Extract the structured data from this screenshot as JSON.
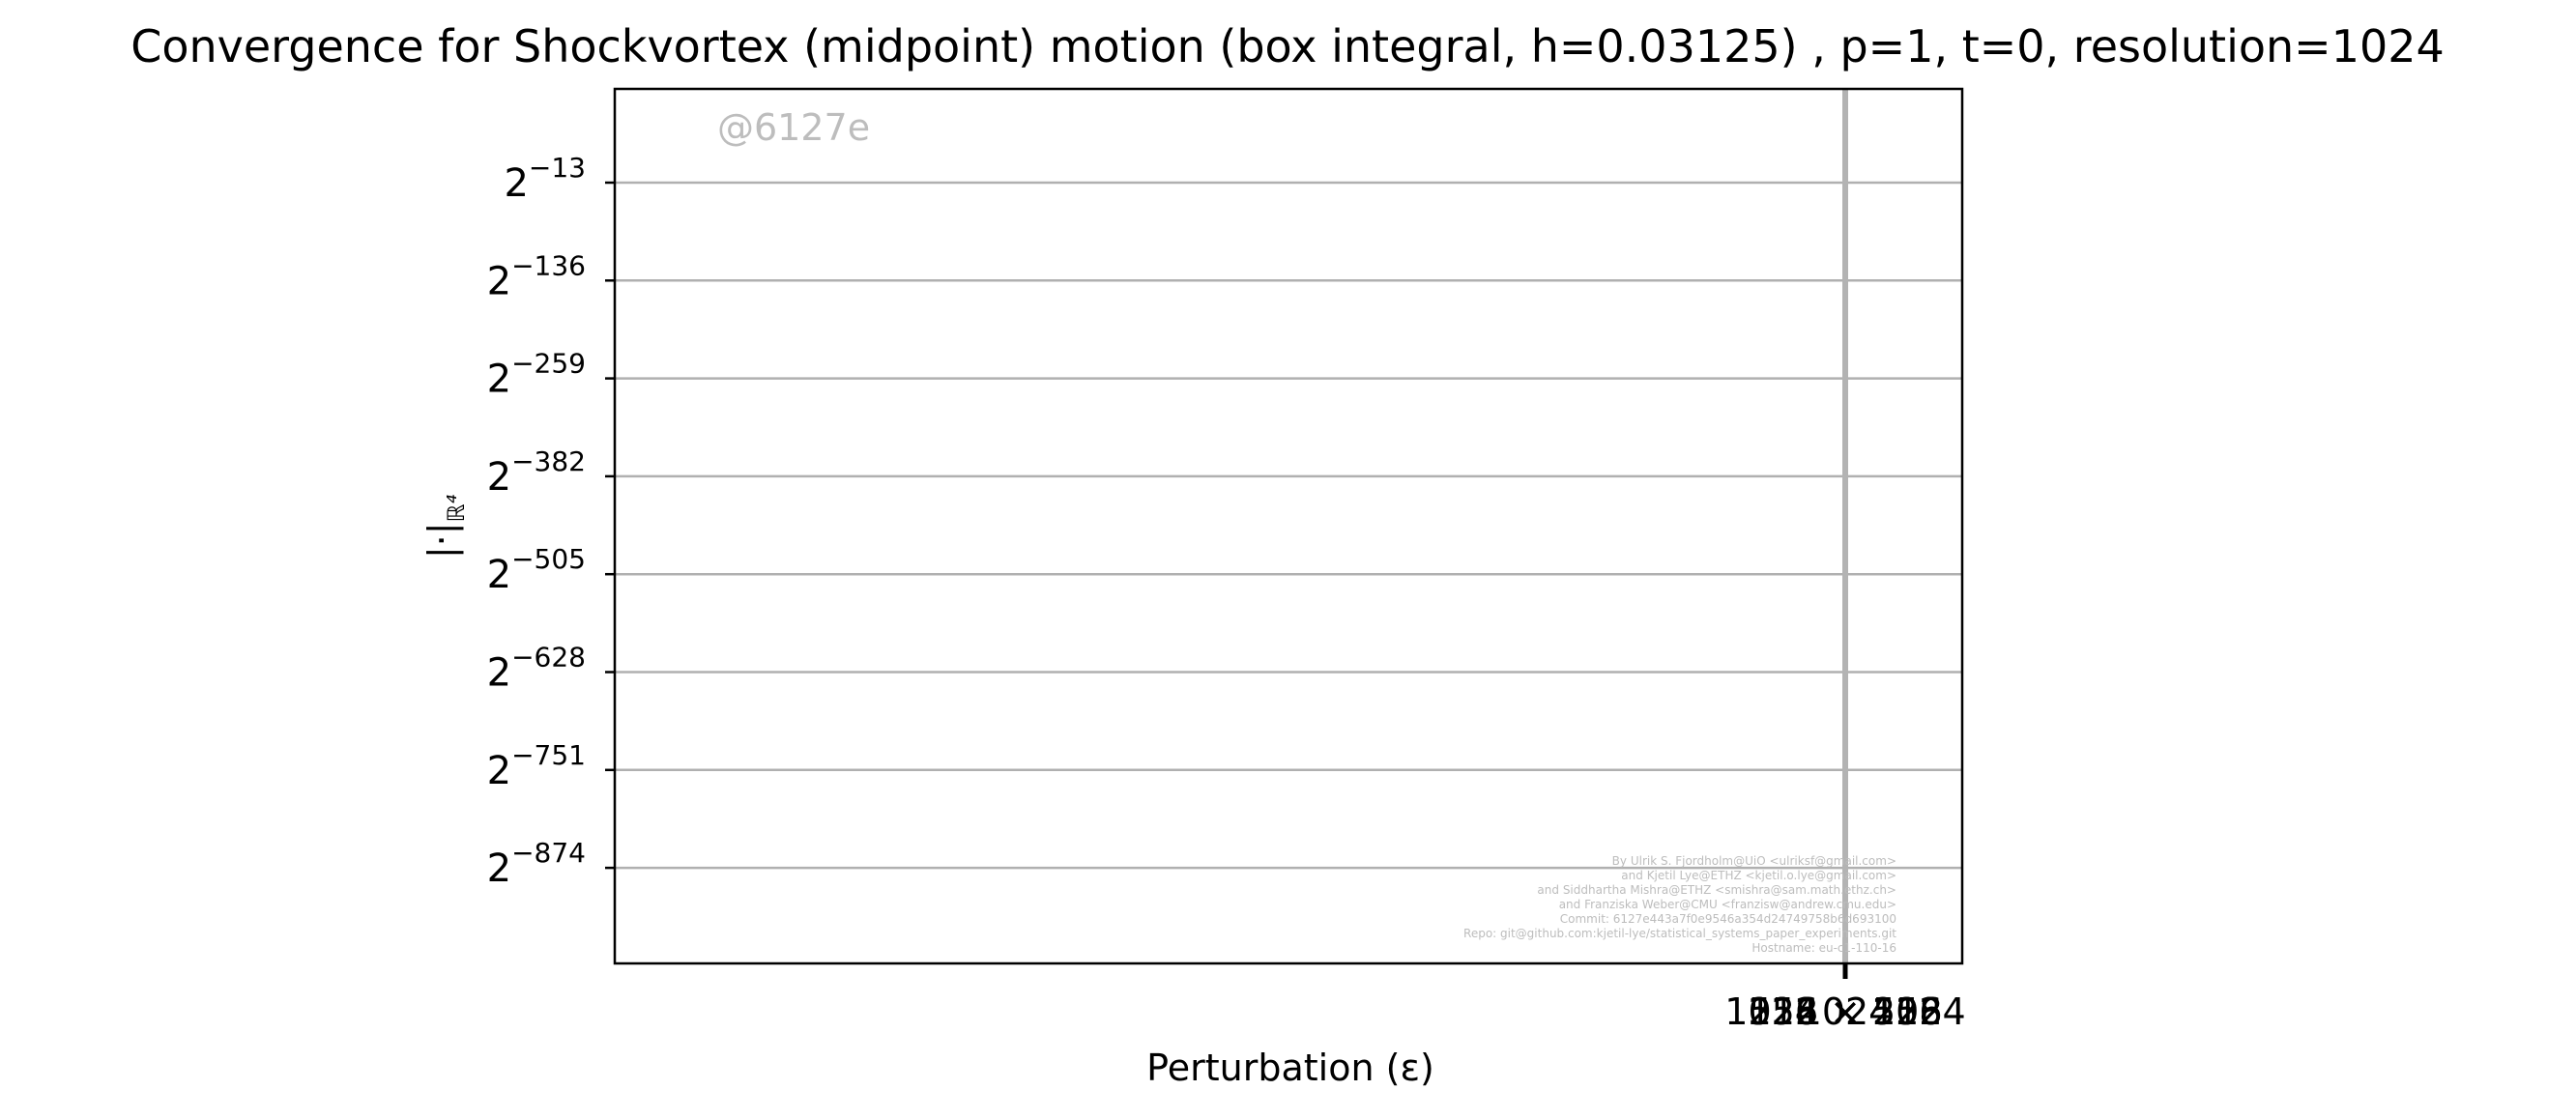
{
  "chart_data": {
    "type": "line",
    "title": "Convergence for Shockvortex (midpoint) motion (box integral, h=0.03125) , p=1, t=0, resolution=1024",
    "xlabel": "Perturbation (ε)",
    "ylabel": "|·|",
    "ylabel_subscript": "ℝ⁴",
    "yscale": "log2",
    "grid": true,
    "y_ticks": [
      {
        "base": "2",
        "exp": "−13"
      },
      {
        "base": "2",
        "exp": "−136"
      },
      {
        "base": "2",
        "exp": "−259"
      },
      {
        "base": "2",
        "exp": "−382"
      },
      {
        "base": "2",
        "exp": "−505"
      },
      {
        "base": "2",
        "exp": "−628"
      },
      {
        "base": "2",
        "exp": "−751"
      },
      {
        "base": "2",
        "exp": "−874"
      }
    ],
    "x_tick_labels": [
      "1024",
      "512 × 512",
      "256 × 256",
      "128 × 128",
      "1024 × 1024"
    ],
    "series": [],
    "vertical_line_color": "#b3b3b3",
    "grid_color": "#b0b0b0"
  },
  "watermark": "@6127e",
  "credits": [
    "By Ulrik S. Fjordholm@UiO <ulriksf@gmail.com>",
    "and Kjetil Lye@ETHZ <kjetil.o.lye@gmail.com>",
    "and Siddhartha Mishra@ETHZ <smishra@sam.math.ethz.ch>",
    "and Franziska Weber@CMU <franzisw@andrew.cmu.edu>",
    "Commit: 6127e443a7f0e9546a354d24749758b6d693100",
    "Repo: git@github.com:kjetil-lye/statistical_systems_paper_experiments.git",
    "Hostname: eu-c1-110-16"
  ]
}
